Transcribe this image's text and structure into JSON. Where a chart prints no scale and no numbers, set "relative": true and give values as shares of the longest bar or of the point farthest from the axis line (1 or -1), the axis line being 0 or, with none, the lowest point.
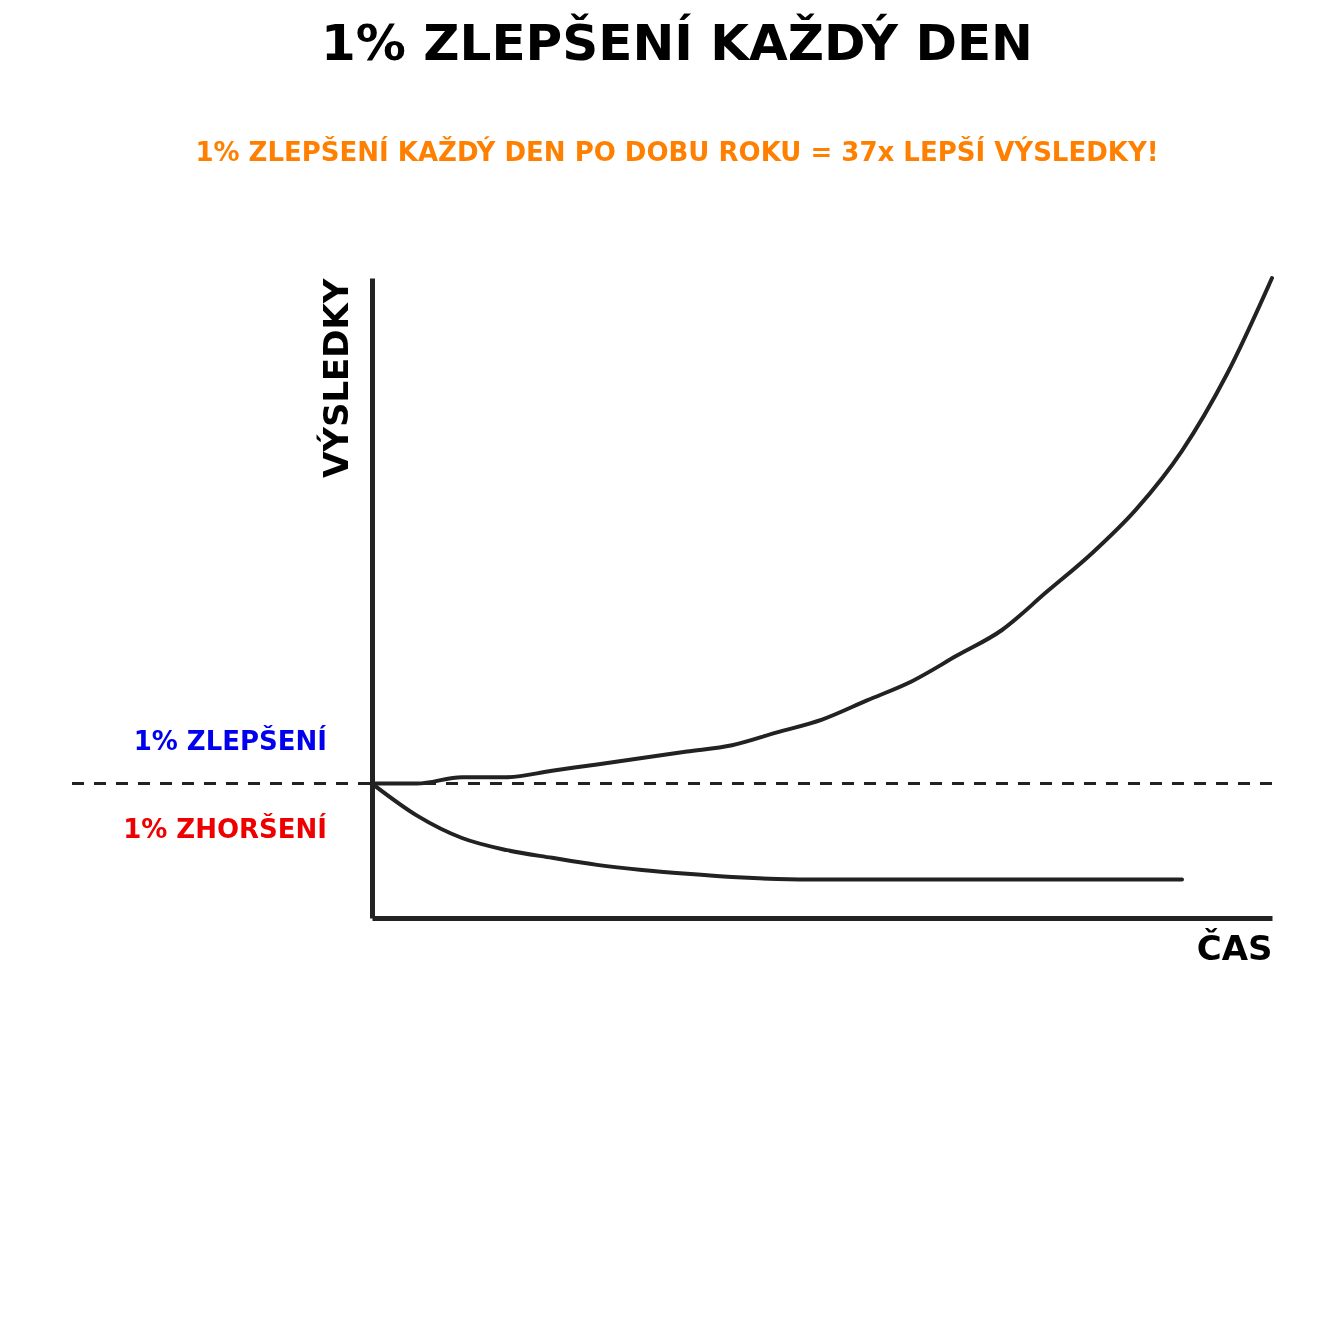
{
  "chart_data": {
    "type": "line",
    "title": "1% ZLEPŠENÍ KAŽDÝ DEN",
    "subtitle": "1% ZLEPŠENÍ KAŽDÝ DEN PO DOBU ROKU = 37x LEPŠÍ VÝSLEDKY!",
    "xlabel": "ČAS",
    "ylabel": "VÝSLEDKY",
    "relative": true,
    "categories": [
      null,
      null,
      null,
      null,
      null,
      null,
      null,
      null,
      null,
      null,
      null,
      null,
      null,
      null,
      null,
      null,
      null,
      null,
      null,
      null,
      null
    ],
    "series": [
      {
        "name": "1% ZLEPŠENÍ",
        "color": "#222222",
        "values": [
          0.21,
          0.21,
          0.22,
          0.22,
          0.23,
          0.24,
          0.25,
          0.26,
          0.27,
          0.29,
          0.31,
          0.34,
          0.37,
          0.41,
          0.45,
          0.51,
          0.57,
          0.64,
          0.73,
          0.85,
          1
        ]
      },
      {
        "name": "1% ZHORŠENÍ",
        "color": "#222222",
        "values": [
          0.21,
          0.16,
          0.125,
          0.106,
          0.094,
          0.083,
          0.075,
          0.069,
          0.064,
          0.061,
          0.06,
          0.06,
          0.06,
          0.06,
          0.06,
          0.06,
          0.06,
          0.06,
          0.06,
          null,
          null
        ]
      }
    ],
    "ref_lines": [
      {
        "axis": "y",
        "value": 0.21,
        "line_style": "dashed"
      }
    ]
  }
}
